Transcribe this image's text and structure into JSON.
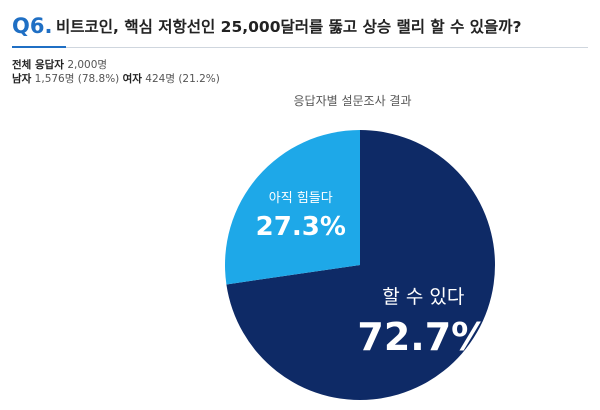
{
  "question": {
    "number": "Q6.",
    "text": "비트코인, 핵심 저항선인 25,000달러를 뚫고 상승 랠리 할 수 있을까?"
  },
  "respondents": {
    "total_label": "전체 응답자",
    "total_value": "2,000명",
    "male_label": "남자",
    "male_value": "1,576명 (78.8%)",
    "female_label": "여자",
    "female_value": "424명 (21.2%)"
  },
  "colors": {
    "accent": "#1f6fc4",
    "slice_dark": "#0e2a66",
    "slice_light": "#1ea8e8"
  },
  "chart_data": {
    "type": "pie",
    "title": "응답자별 설문조사 결과",
    "slices": [
      {
        "label": "할 수 있다",
        "value": 72.7,
        "value_label": "72.7%",
        "color": "#0e2a66"
      },
      {
        "label": "아직 힘들다",
        "value": 27.3,
        "value_label": "27.3%",
        "color": "#1ea8e8"
      }
    ]
  }
}
